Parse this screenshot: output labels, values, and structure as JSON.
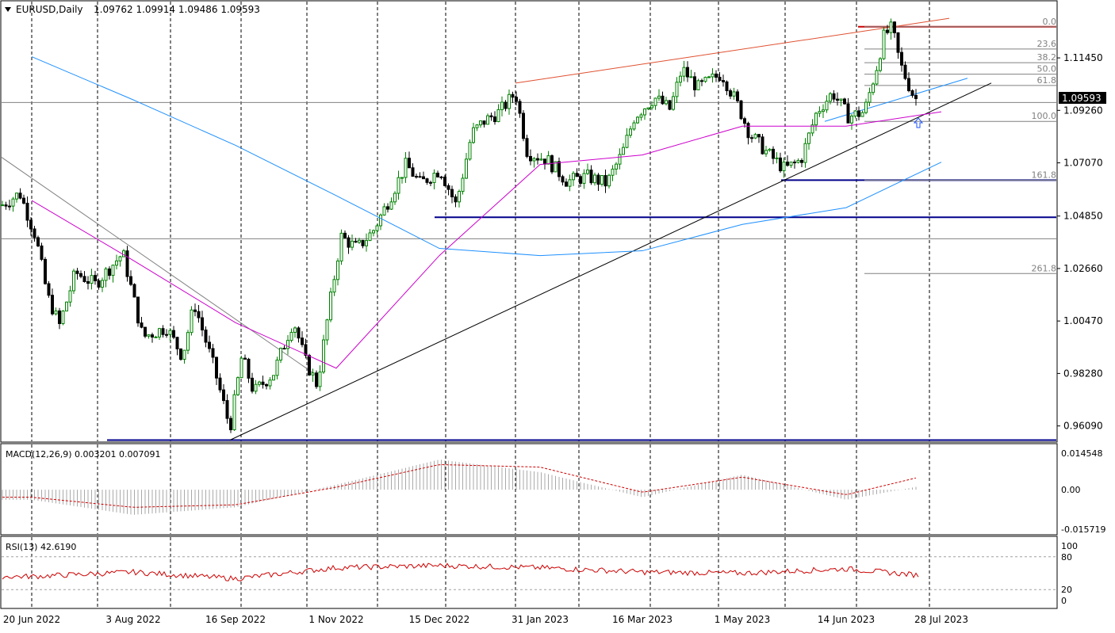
{
  "header": {
    "symbol_label": "EURUSD,Daily",
    "ohlc": "1.09762 1.09914 1.09486 1.09593",
    "dropdown_icon": "triangle-down-icon"
  },
  "chart_data": [
    {
      "type": "line",
      "panel": "price",
      "title": "EURUSD,Daily 1.09762 1.09914 1.09486 1.09593",
      "xlabel": "",
      "ylabel": "",
      "x_tick_labels": [
        "20 Jun 2022",
        "3 Aug 2022",
        "16 Sep 2022",
        "1 Nov 2022",
        "15 Dec 2022",
        "31 Jan 2023",
        "16 Mar 2023",
        "1 May 2023",
        "14 Jun 2023",
        "28 Jul 2023"
      ],
      "y_tick_labels": [
        "1.11450",
        "1.09260",
        "1.07070",
        "1.04850",
        "1.02660",
        "1.00470",
        "0.98280",
        "0.96090"
      ],
      "ylim": [
        0.9545,
        1.138
      ],
      "current_price_label": "1.09593",
      "grid": "vertical dashed",
      "candles": "daily OHLC candlesticks, green bodies up, black bodies down",
      "series": [
        {
          "x": [
            "20 Jun 2022",
            "3 Aug 2022",
            "16 Sep 2022",
            "1 Nov 2022",
            "15 Dec 2022",
            "31 Jan 2023",
            "16 Mar 2023",
            "1 May 2023",
            "14 Jun 2023",
            "28 Jul 2023"
          ],
          "values": [
            1.052,
            1.018,
            0.975,
            0.995,
            1.062,
            1.087,
            1.073,
            1.098,
            1.085,
            1.096
          ],
          "color": "#008000"
        },
        {
          "x": [
            "20 Jun 2022",
            "3 Aug 2022",
            "16 Sep 2022",
            "1 Nov 2022",
            "15 Dec 2022",
            "31 Jan 2023",
            "16 Mar 2023",
            "1 May 2023",
            "14 Jun 2023",
            "28 Jul 2023"
          ],
          "values": [
            1.055,
            1.03,
            1.004,
            0.985,
            1.032,
            1.07,
            1.074,
            1.086,
            1.086,
            1.092
          ],
          "color": "#cc00cc"
        },
        {
          "x": [
            "20 Jun 2022",
            "3 Aug 2022",
            "16 Sep 2022",
            "1 Nov 2022",
            "15 Dec 2022",
            "31 Jan 2023",
            "16 Mar 2023",
            "1 May 2023",
            "14 Jun 2023",
            "28 Jul 2023"
          ],
          "values": [
            1.115,
            1.097,
            1.078,
            1.057,
            1.035,
            1.032,
            1.034,
            1.045,
            1.052,
            1.071
          ],
          "color": "#1e90ff"
        }
      ],
      "fibonacci_levels": [
        "0.0",
        "23.6",
        "38.2",
        "50.0",
        "61.8",
        "100.0",
        "161.8",
        "261.8"
      ],
      "colors": {
        "bull": "#008000",
        "bear": "#000000",
        "fib": "#808080",
        "support": "#00008b",
        "resistance": "#cc0000",
        "ma_fast": "#cc00cc",
        "ma_slow": "#1e90ff",
        "trend": "#000000"
      }
    },
    {
      "type": "bar",
      "panel": "macd",
      "title": "MACD(12,26,9) 0.003201 0.007091",
      "y_tick_labels": [
        "0.014548",
        "0.00",
        "-0.015719"
      ],
      "ylim": [
        -0.015719,
        0.014548
      ],
      "series": [
        {
          "x": [
            "20 Jun 2022",
            "3 Aug 2022",
            "16 Sep 2022",
            "1 Nov 2022",
            "15 Dec 2022",
            "31 Jan 2023",
            "16 Mar 2023",
            "1 May 2023",
            "14 Jun 2023",
            "28 Jul 2023"
          ],
          "values": [
            -0.004,
            -0.01,
            -0.007,
            0.002,
            0.012,
            0.007,
            -0.003,
            0.006,
            -0.004,
            0.003
          ],
          "color": "#a9a9a9"
        },
        {
          "x": [
            "20 Jun 2022",
            "3 Aug 2022",
            "16 Sep 2022",
            "1 Nov 2022",
            "15 Dec 2022",
            "31 Jan 2023",
            "16 Mar 2023",
            "1 May 2023",
            "14 Jun 2023",
            "28 Jul 2023"
          ],
          "values": [
            -0.003,
            -0.007,
            -0.006,
            0.001,
            0.01,
            0.009,
            -0.001,
            0.005,
            -0.002,
            0.0071
          ],
          "color": "#cc0000"
        }
      ]
    },
    {
      "type": "line",
      "panel": "rsi",
      "title": "RSI(13) 42.6190",
      "y_tick_labels": [
        "100",
        "80",
        "20",
        "0"
      ],
      "ylim": [
        0,
        100
      ],
      "series": [
        {
          "x": [
            "20 Jun 2022",
            "3 Aug 2022",
            "16 Sep 2022",
            "1 Nov 2022",
            "15 Dec 2022",
            "31 Jan 2023",
            "16 Mar 2023",
            "1 May 2023",
            "14 Jun 2023",
            "28 Jul 2023"
          ],
          "values": [
            44,
            52,
            40,
            60,
            64,
            60,
            52,
            50,
            58,
            42.6
          ],
          "color": "#cc0000"
        }
      ],
      "guide_levels": [
        80,
        20
      ]
    }
  ]
}
